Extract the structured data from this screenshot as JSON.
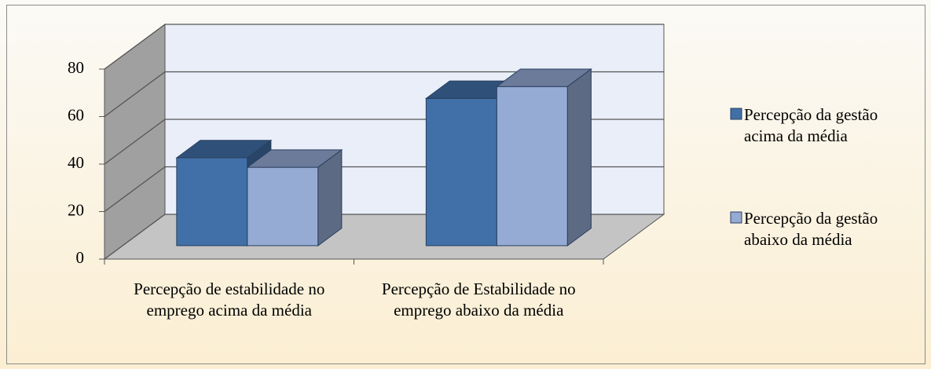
{
  "chart_data": {
    "type": "bar3d",
    "categories": [
      "Percepção de estabilidade no emprego acima da média",
      "Percepção de Estabilidade no emprego abaixo da média"
    ],
    "series": [
      {
        "name": "Percepção da gestão acima da média",
        "color": "#4170a8",
        "values": [
          37,
          62
        ]
      },
      {
        "name": "Percepção da gestão abaixo da média",
        "color": "#95abd4",
        "values": [
          33,
          67
        ]
      }
    ],
    "ylim": [
      0,
      80
    ],
    "yticks": [
      0,
      20,
      40,
      60,
      80
    ],
    "grid": true,
    "legend": "right"
  }
}
